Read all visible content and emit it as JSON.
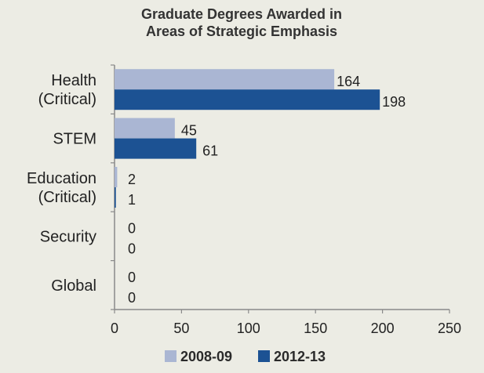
{
  "chart_data": {
    "type": "bar",
    "orientation": "horizontal",
    "title": "Graduate Degrees Awarded in Areas of Strategic Emphasis",
    "title_lines": [
      "Graduate Degrees Awarded in",
      "Areas of Strategic Emphasis"
    ],
    "categories": [
      [
        "Health",
        "(Critical)"
      ],
      [
        "STEM"
      ],
      [
        "Education",
        "(Critical)"
      ],
      [
        "Security"
      ],
      [
        "Global"
      ]
    ],
    "series": [
      {
        "name": "2008-09",
        "color": "#aab6d3",
        "values": [
          164,
          45,
          2,
          0,
          0
        ]
      },
      {
        "name": "2012-13",
        "color": "#1c5293",
        "values": [
          198,
          61,
          1,
          0,
          0
        ]
      }
    ],
    "xlim": [
      0,
      250
    ],
    "xticks": [
      0,
      50,
      100,
      150,
      200,
      250
    ],
    "xlabel": "",
    "ylabel": "",
    "grid": false,
    "legend_position": "bottom"
  }
}
